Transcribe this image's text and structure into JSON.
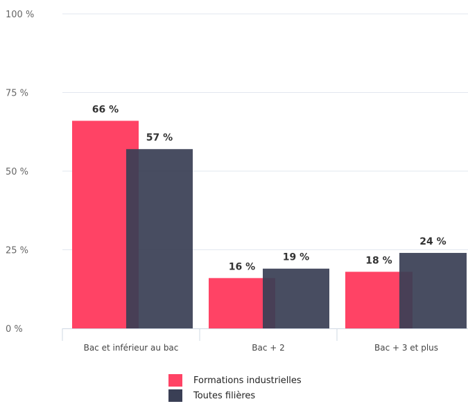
{
  "chart_data": {
    "type": "bar",
    "categories": [
      "Bac et inférieur au bac",
      "Bac + 2",
      "Bac + 3 et plus"
    ],
    "series": [
      {
        "name": "Formations industrielles",
        "values": [
          66,
          16,
          18
        ],
        "labels": [
          "66 %",
          "16 %",
          "18 %"
        ],
        "color": "#ff4365"
      },
      {
        "name": "Toutes filières",
        "values": [
          57,
          19,
          24
        ],
        "labels": [
          "57 %",
          "19 %",
          "24 %"
        ],
        "color": "#3a3f55"
      }
    ],
    "ylim": [
      0,
      100
    ],
    "yticks": [
      0,
      25,
      50,
      75,
      100
    ],
    "ytick_labels": [
      "0 %",
      "25 %",
      "50 %",
      "75 %",
      "100 %"
    ],
    "grid": true,
    "legend_position": "bottom"
  }
}
